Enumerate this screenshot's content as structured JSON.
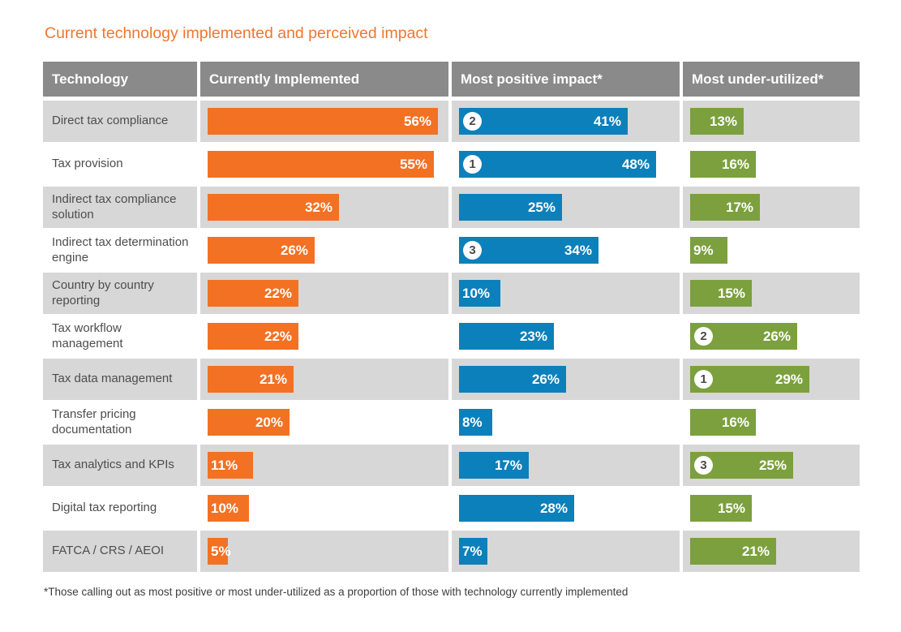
{
  "title": "Current technology implemented and perceived impact",
  "footnote": "*Those calling out as most positive or most under-utilized as a proportion of those with technology currently implemented",
  "table": {
    "columns": [
      "Technology",
      "Currently Implemented",
      "Most positive impact*",
      "Most under-utilized*"
    ]
  },
  "colors": {
    "title": "#ed7731",
    "implemented_bar": "#f37123",
    "positive_bar": "#0c80ba",
    "underutilized_bar": "#7ba03d",
    "header_bg": "#8a8a8a",
    "row_alt_bg": "#d7d7d7",
    "badge_bg": "#ffffff",
    "badge_text": "#4a4a4a",
    "bar_label_text": "#ffffff"
  },
  "chart_data": {
    "type": "bar",
    "title": "Current technology implemented and perceived impact",
    "unit": "%",
    "legend_position": "column headers",
    "grid": false,
    "xlim": [
      0,
      60
    ],
    "categories": [
      "Direct tax compliance",
      "Tax provision",
      "Indirect tax compliance solution",
      "Indirect tax determination engine",
      "Country by country reporting",
      "Tax workflow management",
      "Tax data management",
      "Transfer pricing documentation",
      "Tax analytics and KPIs",
      "Digital tax reporting",
      "FATCA / CRS / AEOI"
    ],
    "series": [
      {
        "name": "Currently Implemented",
        "color": "#f37123",
        "values": [
          56,
          55,
          32,
          26,
          22,
          22,
          21,
          20,
          11,
          10,
          5
        ],
        "ranks": [
          null,
          null,
          null,
          null,
          null,
          null,
          null,
          null,
          null,
          null,
          null
        ]
      },
      {
        "name": "Most positive impact*",
        "color": "#0c80ba",
        "values": [
          41,
          48,
          25,
          34,
          10,
          23,
          26,
          8,
          17,
          28,
          7
        ],
        "ranks": [
          2,
          1,
          null,
          3,
          null,
          null,
          null,
          null,
          null,
          null,
          null
        ]
      },
      {
        "name": "Most under-utilized*",
        "color": "#7ba03d",
        "values": [
          13,
          16,
          17,
          9,
          15,
          26,
          29,
          16,
          25,
          15,
          21
        ],
        "ranks": [
          null,
          null,
          null,
          null,
          null,
          2,
          1,
          null,
          3,
          null,
          null
        ]
      }
    ]
  }
}
